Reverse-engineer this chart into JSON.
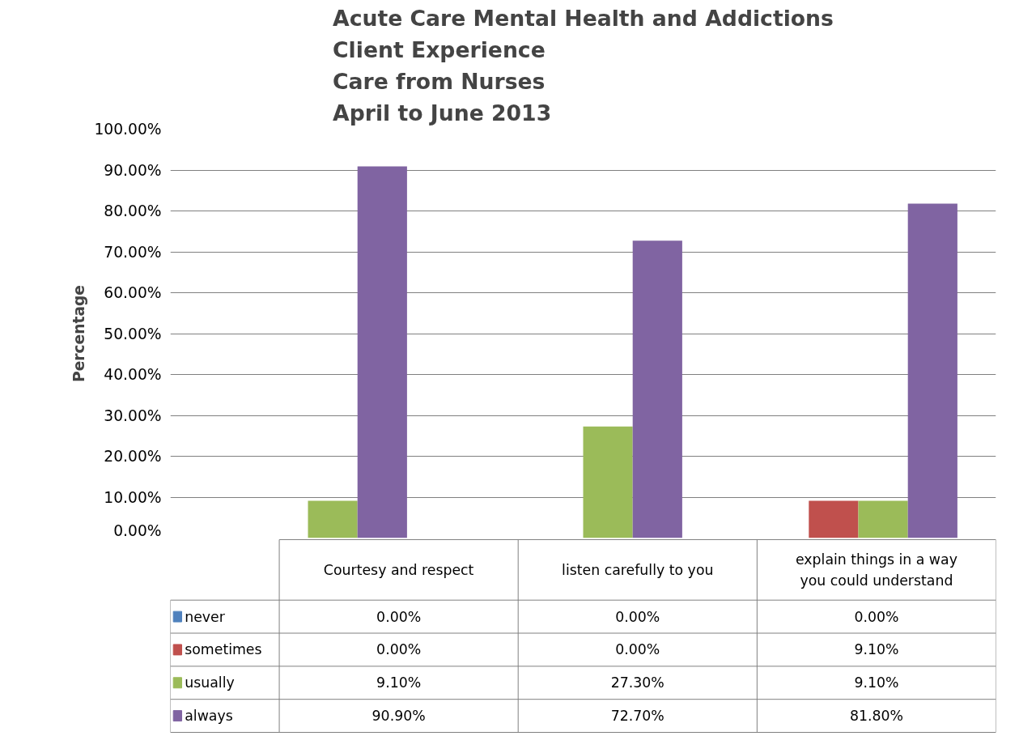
{
  "chart_data": {
    "type": "bar",
    "title": "Acute Care Mental Health and Addictions\nClient Experience\nCare from Nurses\nApril to June 2013",
    "ylabel": "Percentage",
    "categories": [
      "Courtesy and respect",
      "listen carefully to you",
      "explain things in a way you could understand"
    ],
    "series": [
      {
        "name": "never",
        "color": "#4f81bd",
        "values": [
          0,
          0,
          0
        ],
        "value_labels": [
          "0.00%",
          "0.00%",
          "0.00%"
        ]
      },
      {
        "name": "sometimes",
        "color": "#c0504d",
        "values": [
          0,
          0,
          9.1
        ],
        "value_labels": [
          "0.00%",
          "0.00%",
          "9.10%"
        ]
      },
      {
        "name": "usually",
        "color": "#9bbb59",
        "values": [
          9.1,
          27.3,
          9.1
        ],
        "value_labels": [
          "9.10%",
          "27.30%",
          "9.10%"
        ]
      },
      {
        "name": "always",
        "color": "#8064a2",
        "values": [
          90.9,
          72.7,
          81.8
        ],
        "value_labels": [
          "90.90%",
          "72.70%",
          "81.80%"
        ]
      }
    ],
    "ylim": [
      0,
      100
    ],
    "yticks": [
      {
        "value": 0,
        "label": "0.00%"
      },
      {
        "value": 10,
        "label": "10.00%"
      },
      {
        "value": 20,
        "label": "20.00%"
      },
      {
        "value": 30,
        "label": "30.00%"
      },
      {
        "value": 40,
        "label": "40.00%"
      },
      {
        "value": 50,
        "label": "50.00%"
      },
      {
        "value": 60,
        "label": "60.00%"
      },
      {
        "value": 70,
        "label": "70.00%"
      },
      {
        "value": 80,
        "label": "80.00%"
      },
      {
        "value": 90,
        "label": "90.00%"
      },
      {
        "value": 100,
        "label": "100.00%"
      }
    ],
    "grid": "y",
    "legend": "bottom"
  }
}
